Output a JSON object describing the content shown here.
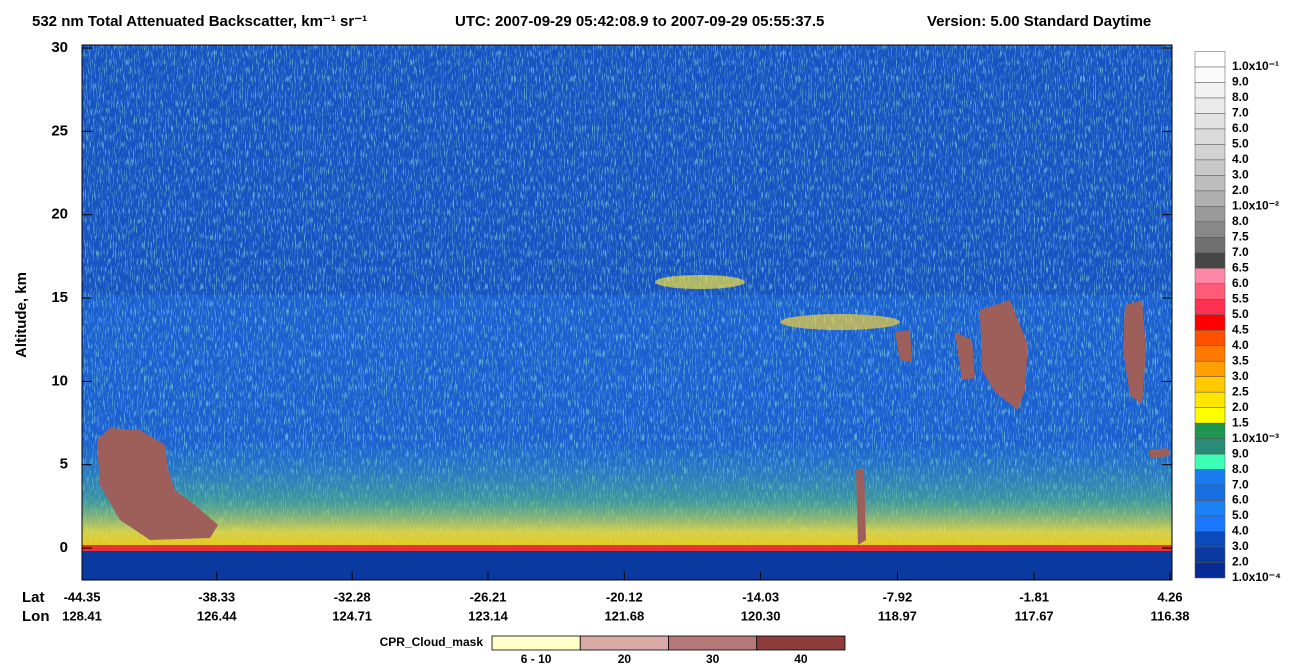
{
  "chart_data": {
    "type": "heatmap",
    "title": "532 nm Total Attenuated Backscatter, km⁻¹ sr⁻¹",
    "time_range": "UTC:  2007-09-29 05:42:08.9  to  2007-09-29 05:55:37.5",
    "version": "Version: 5.00  Standard  Daytime",
    "ylabel": "Altitude, km",
    "ylim": [
      -1.9,
      30.2
    ],
    "yticks": [
      0,
      5,
      10,
      15,
      20,
      25,
      30
    ],
    "xlim": [
      -44.35,
      4.26
    ],
    "lat_label": "Lat",
    "lat": [
      -44.35,
      -38.33,
      -32.28,
      -26.21,
      -20.12,
      -14.03,
      -7.92,
      -1.81,
      4.26
    ],
    "lon_label": "Lon",
    "lon": [
      128.41,
      126.44,
      124.71,
      123.14,
      121.68,
      {
        "value": 120.3,
        "label": "120.30"
      },
      118.97,
      117.67,
      116.38
    ],
    "colorbar": {
      "labels": [
        "1.0x10⁻¹",
        "9.0",
        "8.0",
        "7.0",
        "6.0",
        "5.0",
        "4.0",
        "3.0",
        "2.0",
        "1.0x10⁻²",
        "8.0",
        "7.5",
        "7.0",
        "6.5",
        "6.0",
        "5.5",
        "5.0",
        "4.5",
        "4.0",
        "3.5",
        "3.0",
        "2.5",
        "2.0",
        "1.5",
        "1.0x10⁻³",
        "9.0",
        "8.0",
        "7.0",
        "6.0",
        "5.0",
        "4.0",
        "3.0",
        "2.0",
        "1.0x10⁻⁴"
      ],
      "colors": [
        "#ffffff",
        "#fafafa",
        "#f2f2f2",
        "#eaeaea",
        "#e2e2e2",
        "#dadada",
        "#d2d2d2",
        "#c8c8c8",
        "#bebebe",
        "#b0b0b0",
        "#9a9a9a",
        "#888888",
        "#707070",
        "#464646",
        "#ff86a6",
        "#ff5a78",
        "#ff3050",
        "#ff0000",
        "#ff5000",
        "#ff7800",
        "#ffa000",
        "#ffc800",
        "#ffe600",
        "#ffff00",
        "#1e9650",
        "#2a8c78",
        "#3cffb4",
        "#1a7aef",
        "#1a6fe0",
        "#1a82f5",
        "#1a78ff",
        "#0a4aba",
        "#0a3aa0",
        "#082a96"
      ]
    },
    "cloud_mask": {
      "title": "CPR_Cloud_mask",
      "labels": [
        "6 - 10",
        "20",
        "30",
        "40"
      ],
      "colors": [
        "#ffffc8",
        "#d9aaa6",
        "#b57878",
        "#8e3c3c"
      ]
    }
  }
}
